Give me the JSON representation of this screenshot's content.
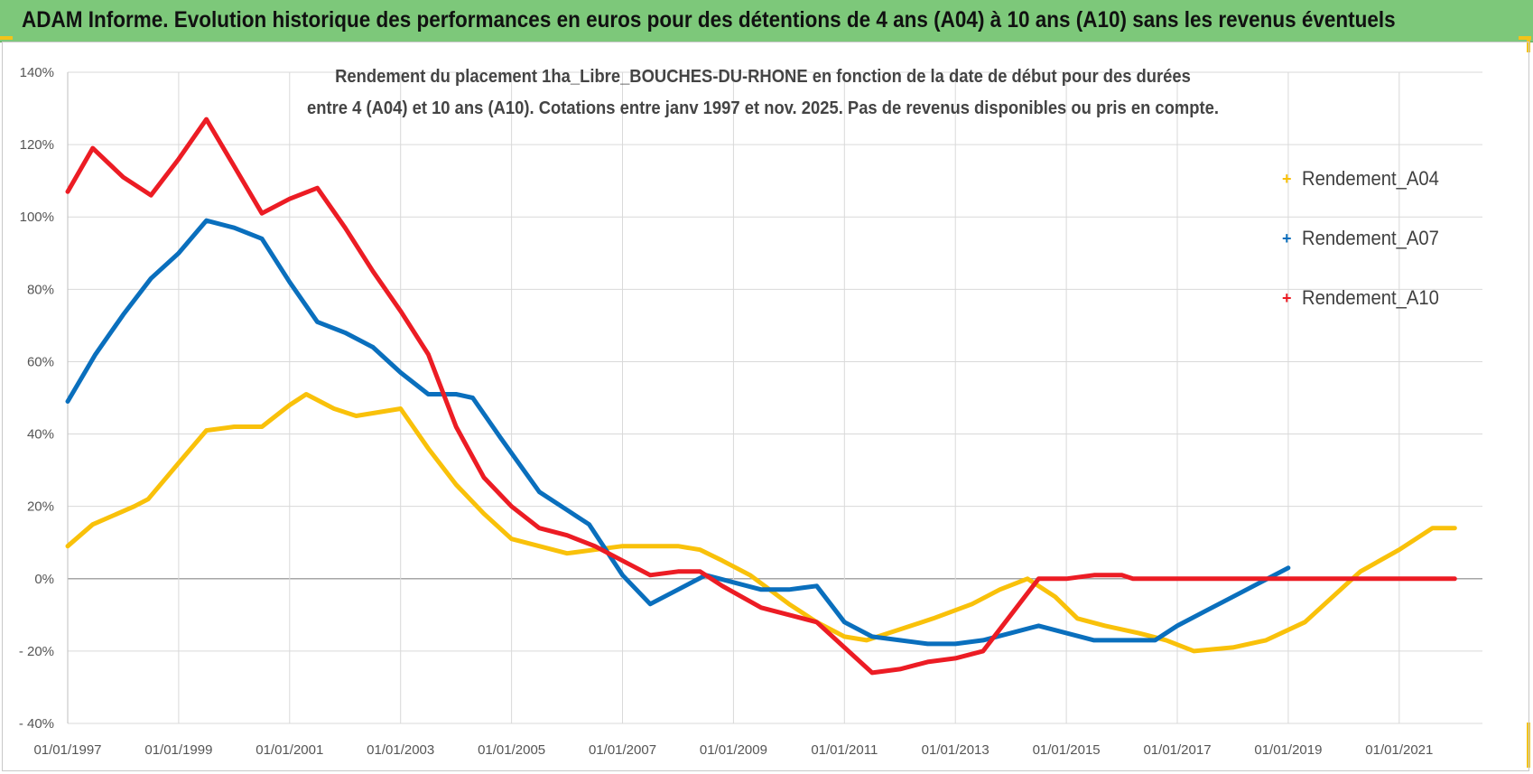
{
  "header": {
    "title": "ADAM Informe. Evolution historique des performances en euros pour des détentions de 4 ans (A04) à 10 ans (A10) sans les revenus éventuels"
  },
  "colors": {
    "banner": "#7dc87a",
    "A04": "#f9c10a",
    "A07": "#0a6fbd",
    "A10": "#ec1c24",
    "grid": "#d9d9d9"
  },
  "chart_data": {
    "type": "line",
    "title_lines": [
      "Rendement du placement 1ha_Libre_BOUCHES-DU-RHONE en fonction de la date de début pour des durées",
      "entre 4 (A04) et 10 ans (A10). Cotations entre janv 1997 et nov. 2025. Pas de revenus disponibles ou pris en compte."
    ],
    "xlabel": "",
    "ylabel": "",
    "x_range": [
      "01/01/1997",
      "01/07/2022"
    ],
    "ylim": [
      -40,
      140
    ],
    "y_ticks": [
      "140%",
      "120%",
      "100%",
      "80%",
      "60%",
      "40%",
      "20%",
      "0%",
      "- 20%",
      "- 40%"
    ],
    "x_ticks": [
      "01/01/1997",
      "01/01/1999",
      "01/01/2001",
      "01/01/2003",
      "01/01/2005",
      "01/01/2007",
      "01/01/2009",
      "01/01/2011",
      "01/01/2013",
      "01/01/2015",
      "01/01/2017",
      "01/01/2019",
      "01/01/2021"
    ],
    "legend_position": "right",
    "grid": true,
    "series": [
      {
        "name": "Rendement_A04",
        "color": "#f9c10a",
        "points": [
          [
            1997.0,
            9
          ],
          [
            1997.45,
            15
          ],
          [
            1998.2,
            20
          ],
          [
            1998.45,
            22
          ],
          [
            1999.0,
            32
          ],
          [
            1999.5,
            41
          ],
          [
            2000.0,
            42
          ],
          [
            2000.5,
            42
          ],
          [
            2001.0,
            48
          ],
          [
            2001.3,
            51
          ],
          [
            2001.8,
            47
          ],
          [
            2002.2,
            45
          ],
          [
            2002.6,
            46
          ],
          [
            2003.0,
            47
          ],
          [
            2003.5,
            36
          ],
          [
            2004.0,
            26
          ],
          [
            2004.5,
            18
          ],
          [
            2005.0,
            11
          ],
          [
            2005.5,
            9
          ],
          [
            2006.0,
            7
          ],
          [
            2006.5,
            8
          ],
          [
            2007.0,
            9
          ],
          [
            2007.5,
            9
          ],
          [
            2008.0,
            9
          ],
          [
            2008.4,
            8
          ],
          [
            2008.8,
            5
          ],
          [
            2009.3,
            1
          ],
          [
            2010.0,
            -7
          ],
          [
            2010.5,
            -12
          ],
          [
            2011.0,
            -16
          ],
          [
            2011.4,
            -17
          ],
          [
            2012.0,
            -14
          ],
          [
            2012.6,
            -11
          ],
          [
            2013.3,
            -7
          ],
          [
            2013.8,
            -3
          ],
          [
            2014.3,
            0
          ],
          [
            2014.8,
            -5
          ],
          [
            2015.2,
            -11
          ],
          [
            2015.7,
            -13
          ],
          [
            2016.3,
            -15
          ],
          [
            2016.8,
            -17
          ],
          [
            2017.3,
            -20
          ],
          [
            2018.0,
            -19
          ],
          [
            2018.6,
            -17
          ],
          [
            2019.3,
            -12
          ],
          [
            2019.8,
            -5
          ],
          [
            2020.3,
            2
          ],
          [
            2021.0,
            8
          ],
          [
            2021.6,
            14
          ],
          [
            2022.0,
            14
          ]
        ]
      },
      {
        "name": "Rendement_A07",
        "color": "#0a6fbd",
        "points": [
          [
            1997.0,
            49
          ],
          [
            1997.5,
            62
          ],
          [
            1998.0,
            73
          ],
          [
            1998.5,
            83
          ],
          [
            1999.0,
            90
          ],
          [
            1999.5,
            99
          ],
          [
            2000.0,
            97
          ],
          [
            2000.5,
            94
          ],
          [
            2001.0,
            82
          ],
          [
            2001.5,
            71
          ],
          [
            2002.0,
            68
          ],
          [
            2002.5,
            64
          ],
          [
            2003.0,
            57
          ],
          [
            2003.5,
            51
          ],
          [
            2004.0,
            51
          ],
          [
            2004.3,
            50
          ],
          [
            2004.8,
            39
          ],
          [
            2005.5,
            24
          ],
          [
            2006.0,
            19
          ],
          [
            2006.4,
            15
          ],
          [
            2007.0,
            1
          ],
          [
            2007.5,
            -7
          ],
          [
            2008.0,
            -3
          ],
          [
            2008.5,
            1
          ],
          [
            2009.0,
            -1
          ],
          [
            2009.5,
            -3
          ],
          [
            2010.0,
            -3
          ],
          [
            2010.5,
            -2
          ],
          [
            2011.0,
            -12
          ],
          [
            2011.5,
            -16
          ],
          [
            2012.0,
            -17
          ],
          [
            2012.5,
            -18
          ],
          [
            2013.0,
            -18
          ],
          [
            2013.5,
            -17
          ],
          [
            2014.0,
            -15
          ],
          [
            2014.5,
            -13
          ],
          [
            2015.0,
            -15
          ],
          [
            2015.5,
            -17
          ],
          [
            2016.0,
            -17
          ],
          [
            2016.6,
            -17
          ],
          [
            2017.0,
            -13
          ],
          [
            2017.5,
            -9
          ],
          [
            2018.0,
            -5
          ],
          [
            2018.5,
            -1
          ],
          [
            2019.0,
            3
          ]
        ]
      },
      {
        "name": "Rendement_A10",
        "color": "#ec1c24",
        "points": [
          [
            1997.0,
            107
          ],
          [
            1997.45,
            119
          ],
          [
            1998.0,
            111
          ],
          [
            1998.5,
            106
          ],
          [
            1999.0,
            116
          ],
          [
            1999.5,
            127
          ],
          [
            2000.0,
            114
          ],
          [
            2000.5,
            101
          ],
          [
            2001.0,
            105
          ],
          [
            2001.5,
            108
          ],
          [
            2002.0,
            97
          ],
          [
            2002.5,
            85
          ],
          [
            2003.0,
            74
          ],
          [
            2003.5,
            62
          ],
          [
            2004.0,
            42
          ],
          [
            2004.5,
            28
          ],
          [
            2005.0,
            20
          ],
          [
            2005.5,
            14
          ],
          [
            2006.0,
            12
          ],
          [
            2006.5,
            9
          ],
          [
            2007.0,
            5
          ],
          [
            2007.5,
            1
          ],
          [
            2008.0,
            2
          ],
          [
            2008.4,
            2
          ],
          [
            2008.8,
            -2
          ],
          [
            2009.5,
            -8
          ],
          [
            2010.0,
            -10
          ],
          [
            2010.5,
            -12
          ],
          [
            2011.0,
            -19
          ],
          [
            2011.5,
            -26
          ],
          [
            2012.0,
            -25
          ],
          [
            2012.5,
            -23
          ],
          [
            2013.0,
            -22
          ],
          [
            2013.5,
            -20
          ],
          [
            2014.0,
            -10
          ],
          [
            2014.5,
            0
          ],
          [
            2015.0,
            0
          ],
          [
            2015.5,
            1
          ],
          [
            2016.0,
            1
          ],
          [
            2016.2,
            0
          ],
          [
            2017.0,
            0
          ],
          [
            2018.0,
            0
          ],
          [
            2019.0,
            0
          ],
          [
            2020.0,
            0
          ],
          [
            2021.0,
            0
          ],
          [
            2022.0,
            0
          ]
        ]
      }
    ]
  }
}
